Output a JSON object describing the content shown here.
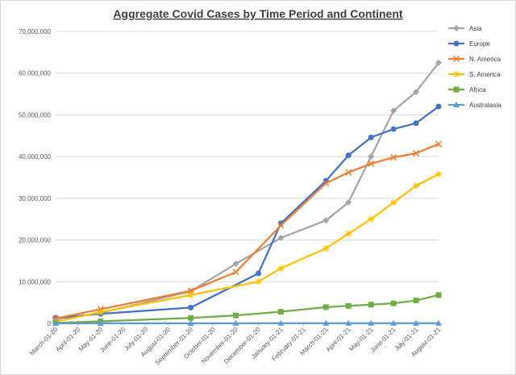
{
  "chart_data": {
    "type": "line",
    "title": "Aggregate Covid Cases by Time Period and Continent",
    "xlabel": "",
    "ylabel": "",
    "ylim": [
      0,
      70000000
    ],
    "y_ticks": [
      0,
      10000000,
      20000000,
      30000000,
      40000000,
      50000000,
      60000000,
      70000000
    ],
    "y_tick_labels": [
      "0",
      "10,000,000",
      "20,000,000",
      "30,000,000",
      "40,000,000",
      "50,000,000",
      "60,000,000",
      "70,000,000"
    ],
    "grid": true,
    "legend": "right",
    "x_categories": [
      "March-01-20",
      "April-01-20",
      "May-01-20",
      "June-01-20",
      "July-01-20",
      "August-01-20",
      "September-01-20",
      "October-01-20",
      "November-01-20",
      "December-01-20",
      "January-01-21",
      "February-01-21",
      "March-01-21",
      "April-01-21",
      "May-01-21",
      "June-01-21",
      "July-01-21",
      "August-01-21"
    ],
    "series": [
      {
        "name": "Asia",
        "color": "#a5a5a5",
        "marker": "diamond",
        "x": [
          "March-01-20",
          "May-01-20",
          "September-01-20",
          "November-01-20",
          "January-01-21",
          "March-01-21",
          "April-01-21",
          "May-01-21",
          "June-01-21",
          "July-01-21",
          "August-01-21"
        ],
        "values": [
          1000000,
          2500000,
          7700000,
          14300000,
          20500000,
          24700000,
          29000000,
          40000000,
          51000000,
          55500000,
          62500000
        ]
      },
      {
        "name": "Europe",
        "color": "#4472c4",
        "marker": "circle",
        "x": [
          "March-01-20",
          "May-01-20",
          "September-01-20",
          "December-01-20",
          "January-01-21",
          "March-01-21",
          "April-01-21",
          "May-01-21",
          "June-01-21",
          "July-01-21",
          "August-01-21"
        ],
        "values": [
          1300000,
          2300000,
          3800000,
          12000000,
          24000000,
          34200000,
          40300000,
          44600000,
          46600000,
          48000000,
          52000000
        ]
      },
      {
        "name": "N. America",
        "color": "#ed7d31",
        "marker": "x",
        "x": [
          "March-01-20",
          "May-01-20",
          "September-01-20",
          "November-01-20",
          "January-01-21",
          "March-01-21",
          "April-01-21",
          "May-01-21",
          "June-01-21",
          "July-01-21",
          "August-01-21"
        ],
        "values": [
          1200000,
          3400000,
          7800000,
          12300000,
          23500000,
          33600000,
          36200000,
          38300000,
          39800000,
          40800000,
          43000000
        ]
      },
      {
        "name": "S. America",
        "color": "#ffc000",
        "marker": "star",
        "x": [
          "March-01-20",
          "May-01-20",
          "September-01-20",
          "December-01-20",
          "January-01-21",
          "March-01-21",
          "April-01-21",
          "May-01-21",
          "June-01-21",
          "July-01-21",
          "August-01-21"
        ],
        "values": [
          400000,
          2700000,
          6800000,
          10000000,
          13200000,
          18000000,
          21500000,
          25000000,
          29000000,
          33000000,
          35800000
        ]
      },
      {
        "name": "Africa",
        "color": "#70ad47",
        "marker": "square",
        "x": [
          "March-01-20",
          "May-01-20",
          "September-01-20",
          "November-01-20",
          "January-01-21",
          "March-01-21",
          "April-01-21",
          "May-01-21",
          "June-01-21",
          "July-01-21",
          "August-01-21"
        ],
        "values": [
          100000,
          500000,
          1300000,
          1900000,
          2800000,
          3900000,
          4200000,
          4500000,
          4800000,
          5500000,
          6800000
        ]
      },
      {
        "name": "Australasia",
        "color": "#5b9bd5",
        "marker": "triangle",
        "x": [
          "March-01-20",
          "May-01-20",
          "September-01-20",
          "November-01-20",
          "January-01-21",
          "March-01-21",
          "April-01-21",
          "May-01-21",
          "June-01-21",
          "July-01-21",
          "August-01-21"
        ],
        "values": [
          10000,
          20000,
          30000,
          35000,
          40000,
          45000,
          48000,
          50000,
          52000,
          55000,
          60000
        ]
      }
    ]
  }
}
